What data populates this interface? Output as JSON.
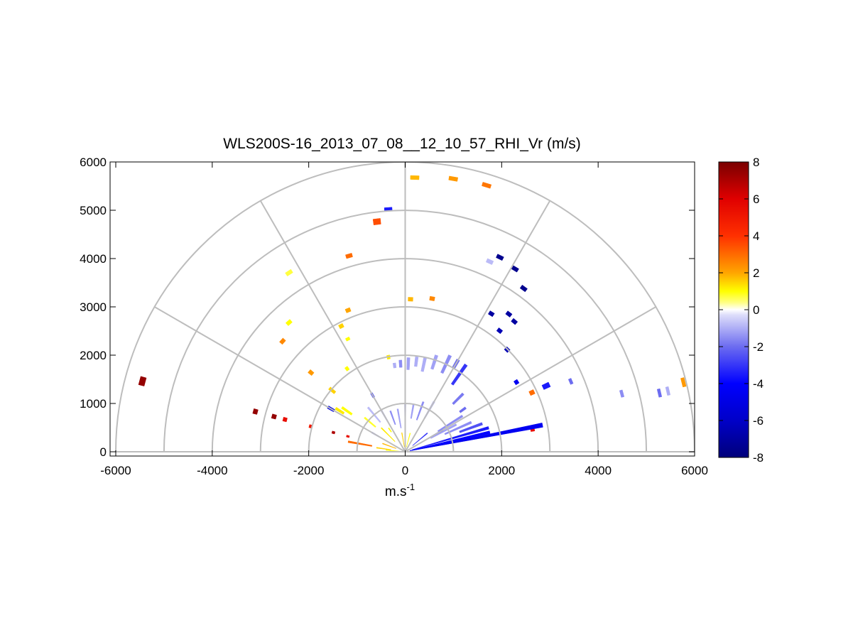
{
  "chart_data": {
    "type": "polar-rhi",
    "title": "WLS200S-16_2013_07_08__12_10_57_RHI_Vr (m/s)",
    "xlabel_base": "m.s",
    "xlabel_sup": "-1",
    "xlim": [
      -6000,
      6000
    ],
    "ylim": [
      0,
      6000
    ],
    "x_ticks": [
      -6000,
      -4000,
      -2000,
      0,
      2000,
      4000,
      6000
    ],
    "y_ticks": [
      0,
      1000,
      2000,
      3000,
      4000,
      5000,
      6000
    ],
    "x_tick_labels": [
      "-6000",
      "-4000",
      "-2000",
      "0",
      "2000",
      "4000",
      "6000"
    ],
    "y_tick_labels": [
      "0",
      "1000",
      "2000",
      "3000",
      "4000",
      "5000",
      "6000"
    ],
    "range_rings": [
      1000,
      2000,
      3000,
      4000,
      5000,
      6000
    ],
    "spokes_deg": [
      30,
      60,
      90,
      120,
      150
    ],
    "grid": true,
    "colorbar": {
      "position": "right",
      "min": -8,
      "max": 8,
      "ticks": [
        8,
        6,
        4,
        2,
        0,
        -2,
        -4,
        -6,
        -8
      ],
      "tick_labels": [
        "8",
        "6",
        "4",
        "2",
        "0",
        "-2",
        "-4",
        "-6",
        "-8"
      ],
      "stops": [
        {
          "v": -8,
          "c": "#00007a"
        },
        {
          "v": -6,
          "c": "#0000c8"
        },
        {
          "v": -4,
          "c": "#0000ff"
        },
        {
          "v": -2,
          "c": "#6c6cf0"
        },
        {
          "v": -0.3,
          "c": "#dcdcfa"
        },
        {
          "v": 0,
          "c": "#ffffff"
        },
        {
          "v": 0.4,
          "c": "#ffff80"
        },
        {
          "v": 1,
          "c": "#ffff00"
        },
        {
          "v": 2,
          "c": "#ffa500"
        },
        {
          "v": 4,
          "c": "#ff3000"
        },
        {
          "v": 6,
          "c": "#e00000"
        },
        {
          "v": 8,
          "c": "#7a0000"
        }
      ]
    },
    "segments": [
      {
        "az": 165,
        "r0": 5580,
        "r1": 5700,
        "v": 7.5
      },
      {
        "az": 165,
        "r0": 3170,
        "r1": 3260,
        "v": 7.5
      },
      {
        "az": 165,
        "r0": 2770,
        "r1": 2860,
        "v": 7.5
      },
      {
        "az": 165,
        "r0": 2540,
        "r1": 2620,
        "v": 5.5
      },
      {
        "az": 165,
        "r0": 2000,
        "r1": 2060,
        "v": 5.0
      },
      {
        "az": 165,
        "r0": 1510,
        "r1": 1570,
        "v": 7.0
      },
      {
        "az": 165,
        "r0": 1200,
        "r1": 1260,
        "v": 5.5
      },
      {
        "az": 170,
        "r0": 700,
        "r1": 1200,
        "v": 3.0
      },
      {
        "az": 172,
        "r0": 300,
        "r1": 600,
        "v": 1.5
      },
      {
        "az": 175,
        "r0": 100,
        "r1": 400,
        "v": 1.0
      },
      {
        "az": 150,
        "r0": 1700,
        "r1": 1850,
        "v": -5.0
      },
      {
        "az": 148,
        "r0": 1500,
        "r1": 1700,
        "v": 1.2
      },
      {
        "az": 145,
        "r0": 1350,
        "r1": 1600,
        "v": 1.0
      },
      {
        "az": 140,
        "r0": 1900,
        "r1": 2050,
        "v": 1.5
      },
      {
        "az": 140,
        "r0": 2500,
        "r1": 2600,
        "v": 2.2
      },
      {
        "az": 138,
        "r0": 3380,
        "r1": 3460,
        "v": 2.5
      },
      {
        "az": 132,
        "r0": 3560,
        "r1": 3640,
        "v": 1.0
      },
      {
        "az": 123,
        "r0": 4380,
        "r1": 4460,
        "v": 0.7
      },
      {
        "az": 106,
        "r0": 4180,
        "r1": 4260,
        "v": 3.0
      },
      {
        "az": 97,
        "r0": 4740,
        "r1": 4860,
        "v": 3.5
      },
      {
        "az": 94,
        "r0": 5000,
        "r1": 5070,
        "v": -3.5
      },
      {
        "az": 112,
        "r0": 3120,
        "r1": 3200,
        "v": 2.0
      },
      {
        "az": 117,
        "r0": 2880,
        "r1": 2960,
        "v": 1.5
      },
      {
        "az": 117,
        "r0": 2590,
        "r1": 2650,
        "v": 1.0
      },
      {
        "az": 125,
        "r0": 2060,
        "r1": 2140,
        "v": 1.0
      },
      {
        "az": 100,
        "r0": 1950,
        "r1": 2030,
        "v": 1.2
      },
      {
        "az": 88,
        "r0": 3120,
        "r1": 3200,
        "v": 1.8
      },
      {
        "az": 80,
        "r0": 3180,
        "r1": 3260,
        "v": 2.5
      },
      {
        "az": 88,
        "r0": 5640,
        "r1": 5720,
        "v": 1.8
      },
      {
        "az": 80,
        "r0": 5700,
        "r1": 5780,
        "v": 2.2
      },
      {
        "az": 73,
        "r0": 5730,
        "r1": 5810,
        "v": 2.8
      },
      {
        "az": 66,
        "r0": 4270,
        "r1": 4350,
        "v": -0.8
      },
      {
        "az": 64,
        "r0": 4440,
        "r1": 4520,
        "v": -7.5
      },
      {
        "az": 59,
        "r0": 4380,
        "r1": 4460,
        "v": -7.5
      },
      {
        "az": 54,
        "r0": 4140,
        "r1": 4220,
        "v": -7.5
      },
      {
        "az": 58,
        "r0": 3330,
        "r1": 3410,
        "v": -7.0
      },
      {
        "az": 53,
        "r0": 3530,
        "r1": 3610,
        "v": -7.0
      },
      {
        "az": 50,
        "r0": 3480,
        "r1": 3560,
        "v": -7.0
      },
      {
        "az": 52,
        "r0": 3140,
        "r1": 3220,
        "v": -6.5
      },
      {
        "az": 45,
        "r0": 2950,
        "r1": 3030,
        "v": -6.5
      },
      {
        "az": 32,
        "r0": 2680,
        "r1": 2760,
        "v": -4.5
      },
      {
        "az": 25,
        "r0": 2850,
        "r1": 2950,
        "v": 3.0
      },
      {
        "az": 25,
        "r0": 3150,
        "r1": 3300,
        "v": -3.5
      },
      {
        "az": 23,
        "r0": 3700,
        "r1": 3760,
        "v": -2.0
      },
      {
        "az": 15,
        "r0": 4620,
        "r1": 4680,
        "v": -1.5
      },
      {
        "az": 13,
        "r0": 5380,
        "r1": 5440,
        "v": -2.0
      },
      {
        "az": 13,
        "r0": 5560,
        "r1": 5620,
        "v": -1.0
      },
      {
        "az": 14,
        "r0": 5910,
        "r1": 5980,
        "v": 2.2
      },
      {
        "az": 10,
        "r0": 2640,
        "r1": 2720,
        "v": 5.5
      },
      {
        "az": 11,
        "r0": 100,
        "r1": 2900,
        "v": -4.5
      },
      {
        "az": 13,
        "r0": 100,
        "r1": 1800,
        "v": -4.0
      },
      {
        "az": 16,
        "r0": 150,
        "r1": 1800,
        "v": -3.5
      },
      {
        "az": 20,
        "r0": 1200,
        "r1": 1700,
        "v": -2.5
      },
      {
        "az": 24,
        "r0": 900,
        "r1": 1500,
        "v": -1.5
      },
      {
        "az": 28,
        "r0": 600,
        "r1": 1200,
        "v": -1.2
      },
      {
        "az": 32,
        "r0": 800,
        "r1": 1400,
        "v": -1.5
      },
      {
        "az": 36,
        "r0": 1400,
        "r1": 1550,
        "v": -2.0
      },
      {
        "az": 45,
        "r0": 1400,
        "r1": 1700,
        "v": -1.8
      },
      {
        "az": 55,
        "r0": 1700,
        "r1": 2200,
        "v": -3.0
      },
      {
        "az": 60,
        "r0": 2000,
        "r1": 2200,
        "v": -2.0
      },
      {
        "az": 65,
        "r0": 1800,
        "r1": 2200,
        "v": -1.5
      },
      {
        "az": 72,
        "r0": 1800,
        "r1": 2100,
        "v": -1.2
      },
      {
        "az": 78,
        "r0": 1700,
        "r1": 2000,
        "v": -1.0
      },
      {
        "az": 83,
        "r0": 1780,
        "r1": 1980,
        "v": -1.0
      },
      {
        "az": 88,
        "r0": 1700,
        "r1": 1950,
        "v": -1.2
      },
      {
        "az": 93,
        "r0": 1750,
        "r1": 1900,
        "v": -1.5
      },
      {
        "az": 97,
        "r0": 1750,
        "r1": 1850,
        "v": -1.0
      },
      {
        "az": 60,
        "r0": 800,
        "r1": 1200,
        "v": -1.0
      },
      {
        "az": 70,
        "r0": 700,
        "r1": 1100,
        "v": -1.5
      },
      {
        "az": 80,
        "r0": 700,
        "r1": 1000,
        "v": -1.2
      },
      {
        "az": 90,
        "r0": 600,
        "r1": 1000,
        "v": -1.0
      },
      {
        "az": 100,
        "r0": 500,
        "r1": 900,
        "v": -1.2
      },
      {
        "az": 110,
        "r0": 600,
        "r1": 900,
        "v": -1.5
      },
      {
        "az": 120,
        "r0": 700,
        "r1": 1000,
        "v": -1.0
      },
      {
        "az": 130,
        "r0": 800,
        "r1": 1200,
        "v": -0.8
      },
      {
        "az": 140,
        "r0": 800,
        "r1": 1100,
        "v": 0.8
      },
      {
        "az": 150,
        "r0": 600,
        "r1": 800,
        "v": -2.5
      },
      {
        "az": 120,
        "r0": 1300,
        "r1": 1400,
        "v": -3.0
      },
      {
        "az": 125,
        "r0": 500,
        "r1": 600,
        "v": 1.0
      },
      {
        "az": 135,
        "r0": 300,
        "r1": 700,
        "v": 1.2
      },
      {
        "az": 150,
        "r0": 200,
        "r1": 500,
        "v": 1.5
      },
      {
        "az": 160,
        "r0": 200,
        "r1": 500,
        "v": 1.8
      },
      {
        "az": 100,
        "r0": 100,
        "r1": 400,
        "v": 1.5
      },
      {
        "az": 90,
        "r0": 100,
        "r1": 300,
        "v": 1.2
      },
      {
        "az": 75,
        "r0": 100,
        "r1": 400,
        "v": 1.0
      },
      {
        "az": 40,
        "r0": 200,
        "r1": 600,
        "v": -3.0
      },
      {
        "az": 30,
        "r0": 300,
        "r1": 900,
        "v": -2.5
      }
    ]
  }
}
